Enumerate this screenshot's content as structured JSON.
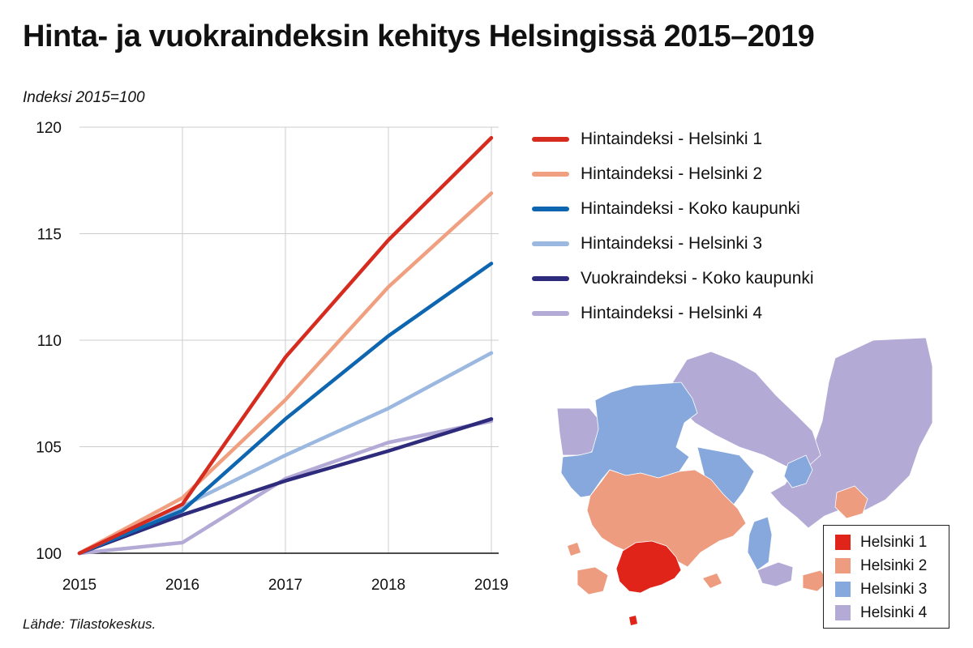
{
  "title": "Hinta- ja vuokraindeksin kehitys Helsingissä 2015–2019",
  "source": "Lähde: Tilastokeskus.",
  "chart_data": {
    "type": "line",
    "ylabel": "Indeksi 2015=100",
    "xlabel": "",
    "x": [
      "2015",
      "2016",
      "2017",
      "2018",
      "2019"
    ],
    "ylim": [
      100,
      120
    ],
    "yticks": [
      "100",
      "105",
      "110",
      "115",
      "120"
    ],
    "grid": "vertical lines at each year, horizontal lines at 105–120",
    "legend_position": "right",
    "series": [
      {
        "name": "Hintaindeksi - Helsinki 1",
        "color": "#d62b1f",
        "values": [
          100,
          102.3,
          109.2,
          114.7,
          119.5
        ]
      },
      {
        "name": "Hintaindeksi - Helsinki 2",
        "color": "#f0a080",
        "values": [
          100,
          102.6,
          107.2,
          112.5,
          116.9
        ]
      },
      {
        "name": "Hintaindeksi - Koko kaupunki",
        "color": "#0f66b0",
        "values": [
          100,
          102.0,
          106.3,
          110.2,
          113.6
        ]
      },
      {
        "name": "Hintaindeksi - Helsinki 3",
        "color": "#9bb8e0",
        "values": [
          100,
          102.2,
          104.6,
          106.8,
          109.4
        ]
      },
      {
        "name": "Vuokraindeksi - Koko kaupunki",
        "color": "#2e2a7c",
        "values": [
          100,
          101.8,
          103.4,
          104.8,
          106.3
        ]
      },
      {
        "name": "Hintaindeksi - Helsinki 4",
        "color": "#b3aad6",
        "values": [
          100,
          100.5,
          103.5,
          105.2,
          106.2
        ]
      }
    ]
  },
  "map": {
    "legend": [
      {
        "label": "Helsinki 1",
        "color": "#e0241a"
      },
      {
        "label": "Helsinki 2",
        "color": "#ee9c80"
      },
      {
        "label": "Helsinki 3",
        "color": "#86a8dc"
      },
      {
        "label": "Helsinki 4",
        "color": "#b3aad6"
      }
    ]
  }
}
